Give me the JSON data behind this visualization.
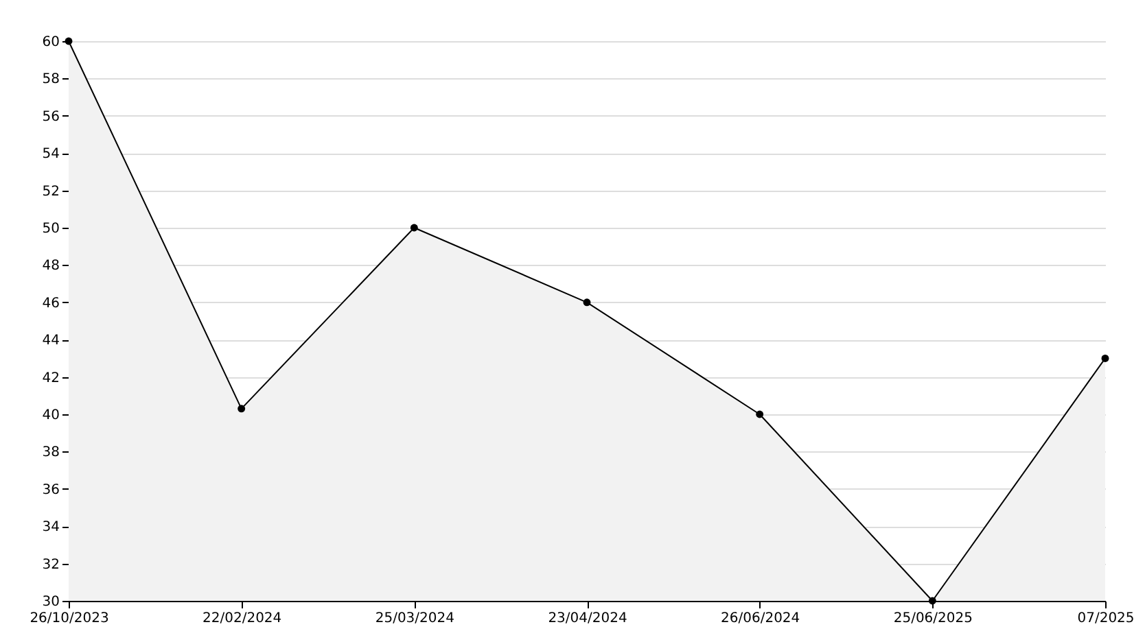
{
  "chart_data": {
    "type": "area",
    "categories": [
      "26/10/2023",
      "22/02/2024",
      "25/03/2024",
      "23/04/2024",
      "26/06/2024",
      "25/06/2025",
      "07/2025"
    ],
    "series": [
      {
        "color": "#000000",
        "values": [
          60,
          40.3,
          50,
          46,
          40,
          30,
          43
        ]
      }
    ],
    "ylim": [
      30,
      60
    ],
    "yticks": [
      30,
      32,
      34,
      36,
      38,
      40,
      42,
      44,
      46,
      48,
      50,
      52,
      54,
      56,
      58,
      60
    ],
    "grid": "y",
    "marker": "circle"
  }
}
